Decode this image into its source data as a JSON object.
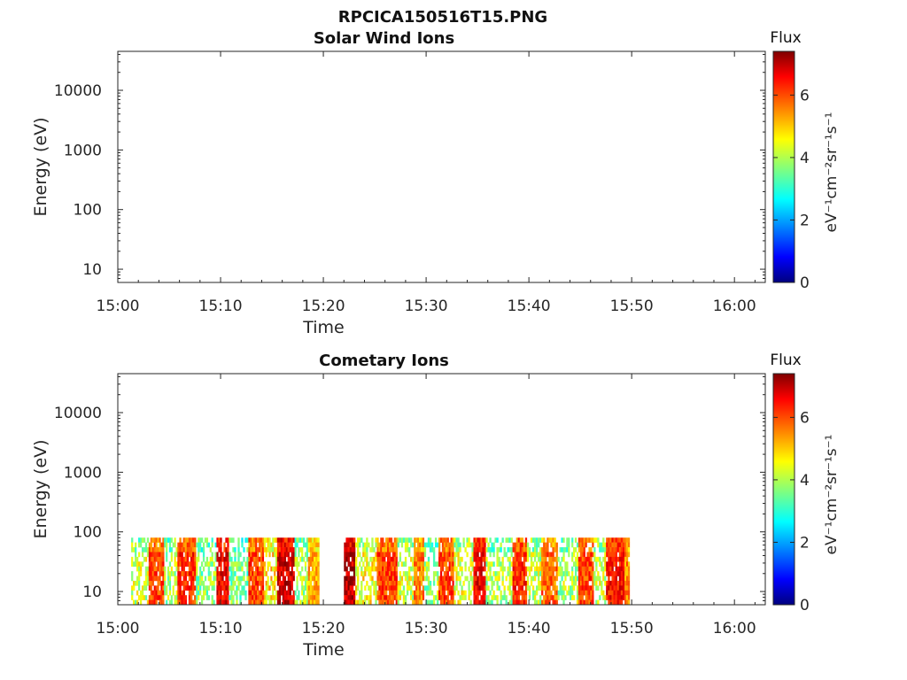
{
  "figure_title": "RPCICA150516T15.PNG",
  "chart_data": [
    {
      "type": "heatmap",
      "title": "Solar Wind Ions",
      "xlabel": "Time",
      "ylabel": "Energy (eV)",
      "x_ticks": [
        "15:00",
        "15:10",
        "15:20",
        "15:30",
        "15:40",
        "15:50",
        "16:00"
      ],
      "y_ticks": [
        {
          "value": 10,
          "label": "10"
        },
        {
          "value": 100,
          "label": "100"
        },
        {
          "value": 1000,
          "label": "1000"
        },
        {
          "value": 10000,
          "label": "10000"
        }
      ],
      "y_scale": "log",
      "ylim": [
        6,
        45000
      ],
      "xlim": [
        "15:00",
        "16:03"
      ],
      "colorbar": {
        "title": "Flux",
        "units": "eV⁻¹cm⁻²sr⁻¹s⁻¹",
        "ticks": [
          0,
          2,
          4,
          6
        ],
        "range": [
          0,
          7.4
        ],
        "colormap": "jet"
      },
      "blocks": []
    },
    {
      "type": "heatmap",
      "title": "Cometary Ions",
      "xlabel": "Time",
      "ylabel": "Energy (eV)",
      "x_ticks": [
        "15:00",
        "15:10",
        "15:20",
        "15:30",
        "15:40",
        "15:50",
        "16:00"
      ],
      "y_ticks": [
        {
          "value": 10,
          "label": "10"
        },
        {
          "value": 100,
          "label": "100"
        },
        {
          "value": 1000,
          "label": "1000"
        },
        {
          "value": 10000,
          "label": "10000"
        }
      ],
      "y_scale": "log",
      "ylim": [
        6,
        45000
      ],
      "xlim": [
        "15:00",
        "16:03"
      ],
      "colorbar": {
        "title": "Flux",
        "units": "eV⁻¹cm⁻²sr⁻¹s⁻¹",
        "ticks": [
          0,
          2,
          4,
          6
        ],
        "range": [
          0,
          7.4
        ],
        "colormap": "jet"
      },
      "energy_range_eV": [
        6,
        80
      ],
      "blocks": [
        {
          "start_min": 1.3,
          "end_min": 3.0,
          "flux": 4.2
        },
        {
          "start_min": 3.0,
          "end_min": 4.5,
          "flux": 6.0
        },
        {
          "start_min": 4.5,
          "end_min": 5.8,
          "flux": 4.0
        },
        {
          "start_min": 5.8,
          "end_min": 7.6,
          "flux": 6.2
        },
        {
          "start_min": 7.6,
          "end_min": 9.6,
          "flux": 3.8
        },
        {
          "start_min": 9.6,
          "end_min": 10.8,
          "flux": 6.6
        },
        {
          "start_min": 10.8,
          "end_min": 12.7,
          "flux": 3.7
        },
        {
          "start_min": 12.7,
          "end_min": 14.2,
          "flux": 6.0
        },
        {
          "start_min": 14.2,
          "end_min": 15.5,
          "flux": 4.8
        },
        {
          "start_min": 15.5,
          "end_min": 17.2,
          "flux": 6.8
        },
        {
          "start_min": 17.2,
          "end_min": 18.5,
          "flux": 4.0
        },
        {
          "start_min": 18.5,
          "end_min": 19.6,
          "flux": 5.2
        },
        {
          "start_min": 22.0,
          "end_min": 23.1,
          "flux": 6.9
        },
        {
          "start_min": 23.1,
          "end_min": 25.2,
          "flux": 4.6
        },
        {
          "start_min": 25.2,
          "end_min": 27.2,
          "flux": 6.0
        },
        {
          "start_min": 27.2,
          "end_min": 28.8,
          "flux": 4.3
        },
        {
          "start_min": 28.8,
          "end_min": 29.8,
          "flux": 5.6
        },
        {
          "start_min": 29.8,
          "end_min": 31.2,
          "flux": 3.9
        },
        {
          "start_min": 31.2,
          "end_min": 32.7,
          "flux": 6.0
        },
        {
          "start_min": 32.7,
          "end_min": 34.6,
          "flux": 4.4
        },
        {
          "start_min": 34.6,
          "end_min": 35.8,
          "flux": 6.6
        },
        {
          "start_min": 35.8,
          "end_min": 38.4,
          "flux": 4.0
        },
        {
          "start_min": 38.4,
          "end_min": 39.8,
          "flux": 6.2
        },
        {
          "start_min": 39.8,
          "end_min": 41.2,
          "flux": 4.2
        },
        {
          "start_min": 41.2,
          "end_min": 42.8,
          "flux": 5.7
        },
        {
          "start_min": 42.8,
          "end_min": 44.8,
          "flux": 4.0
        },
        {
          "start_min": 44.8,
          "end_min": 46.3,
          "flux": 6.0
        },
        {
          "start_min": 46.3,
          "end_min": 47.5,
          "flux": 4.3
        },
        {
          "start_min": 47.5,
          "end_min": 49.3,
          "flux": 6.4
        },
        {
          "start_min": 49.3,
          "end_min": 49.8,
          "flux": 5.5
        }
      ]
    }
  ]
}
